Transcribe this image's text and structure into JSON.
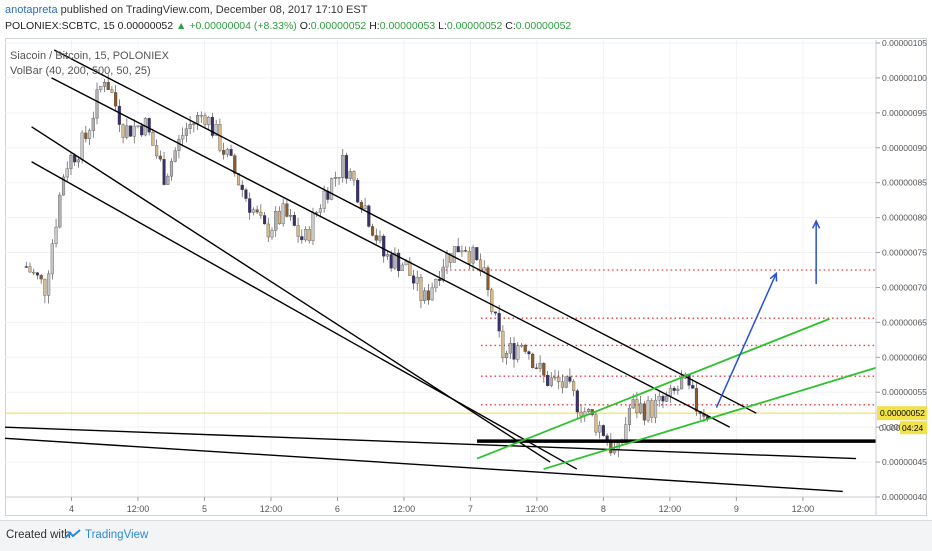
{
  "header": {
    "author": "anotapreta",
    "published": "published on TradingView.com, December 08, 2017 17:10 EST",
    "symbol_line": "POLONIEX:SCBTC, 15 ",
    "price": "0.00000052",
    "change": "+0.00000004 (+8.33%)",
    "o_label": " O:",
    "o_value": "0.00000052",
    "h_label": " H:",
    "h_value": "0.00000053",
    "l_label": " L:",
    "l_value": "0.00000052",
    "c_label": " C:",
    "c_value": "0.00000052"
  },
  "legend": {
    "title": "Siacoin / Bitcoin, 15, POLONIEX",
    "indicator": "VolBar (40, 200, 500, 50, 25)"
  },
  "chart_data": {
    "type": "candlestick",
    "y_axis_ticks": [
      "0.00000105",
      "0.00000100",
      "0.00000095",
      "0.00000090",
      "0.00000085",
      "0.00000080",
      "0.00000075",
      "0.00000070",
      "0.00000065",
      "0.00000060",
      "0.00000055",
      "0.00000050",
      "0.00000045",
      "0.00000040"
    ],
    "ylim": [
      4e-07,
      1.05e-06
    ],
    "x_axis_ticks": [
      "4",
      "12:00",
      "5",
      "12:00",
      "6",
      "12:00",
      "7",
      "12:00",
      "8",
      "12:00",
      "9",
      "12:00"
    ],
    "x_axis_ticks_t": [
      0.5,
      1.0,
      1.5,
      2.0,
      2.5,
      3.0,
      3.5,
      4.0,
      4.5,
      5.0,
      5.5,
      6.0
    ],
    "current_price_label": "0.00000052",
    "countdown_label": "04:24",
    "countdown_prefix": "0.000",
    "current_price": 5.2e-07,
    "horizontal_support": 4.8e-07,
    "resistance_levels": [
      7.25e-07,
      6.56e-07,
      6.17e-07,
      5.73e-07,
      5.32e-07
    ],
    "close_path": [
      [
        0.16,
        7.3e-07
      ],
      [
        0.3,
        7e-07
      ],
      [
        0.45,
        8.75e-07
      ],
      [
        0.6,
        9.1e-07
      ],
      [
        0.75,
        1.005e-06
      ],
      [
        0.9,
        9.25e-07
      ],
      [
        1.05,
        9.35e-07
      ],
      [
        1.2,
        8.6e-07
      ],
      [
        1.35,
        9.25e-07
      ],
      [
        1.5,
        9.5e-07
      ],
      [
        1.65,
        8.95e-07
      ],
      [
        1.8,
        8.35e-07
      ],
      [
        1.95,
        7.8e-07
      ],
      [
        2.1,
        8.05e-07
      ],
      [
        2.25,
        7.65e-07
      ],
      [
        2.4,
        8.35e-07
      ],
      [
        2.55,
        8.8e-07
      ],
      [
        2.7,
        8.2e-07
      ],
      [
        2.85,
        7.45e-07
      ],
      [
        3.0,
        7.35e-07
      ],
      [
        3.15,
        6.8e-07
      ],
      [
        3.3,
        7.4e-07
      ],
      [
        3.45,
        7.65e-07
      ],
      [
        3.6,
        7.15e-07
      ],
      [
        3.75,
        6e-07
      ],
      [
        3.9,
        6.25e-07
      ],
      [
        4.05,
        5.7e-07
      ],
      [
        4.2,
        5.6e-07
      ],
      [
        4.35,
        5.25e-07
      ],
      [
        4.5,
        4.95e-07
      ],
      [
        4.6,
        4.55e-07
      ],
      [
        4.7,
        5.3e-07
      ],
      [
        4.85,
        5.25e-07
      ],
      [
        5.0,
        5.4e-07
      ],
      [
        5.1,
        5.65e-07
      ],
      [
        5.2,
        5.3e-07
      ],
      [
        5.3,
        5.2e-07
      ]
    ],
    "price_walk_seed": 7,
    "trendlines": [
      {
        "color": "#000000",
        "points": [
          [
            0.37,
            1.04e-06
          ],
          [
            5.65,
            5.2e-07
          ]
        ]
      },
      {
        "color": "#000000",
        "points": [
          [
            0.35,
            1e-06
          ],
          [
            5.45,
            5e-07
          ]
        ]
      },
      {
        "color": "#000000",
        "points": [
          [
            0.2,
            9.3e-07
          ],
          [
            4.1,
            4.5e-07
          ]
        ]
      },
      {
        "color": "#000000",
        "points": [
          [
            0.2,
            8.8e-07
          ],
          [
            4.3,
            4.4e-07
          ]
        ]
      },
      {
        "color": "#000000",
        "points": [
          [
            0.0,
            5e-07
          ],
          [
            6.4,
            4.55e-07
          ]
        ]
      },
      {
        "color": "#000000",
        "points": [
          [
            0.0,
            4.84e-07
          ],
          [
            6.3,
            4.08e-07
          ]
        ]
      },
      {
        "color": "#2ec12e",
        "points": [
          [
            3.55,
            4.55e-07
          ],
          [
            6.2,
            6.55e-07
          ]
        ]
      },
      {
        "color": "#2ec12e",
        "points": [
          [
            4.05,
            4.4e-07
          ],
          [
            6.55,
            5.85e-07
          ]
        ]
      }
    ],
    "arrows": [
      {
        "color": "#2750d8",
        "from": [
          5.35,
          5.28e-07
        ],
        "to": [
          5.8,
          7.2e-07
        ]
      },
      {
        "color": "#2750d8",
        "from": [
          6.1,
          7.05e-07
        ],
        "to": [
          6.1,
          7.95e-07
        ]
      }
    ]
  }
}
